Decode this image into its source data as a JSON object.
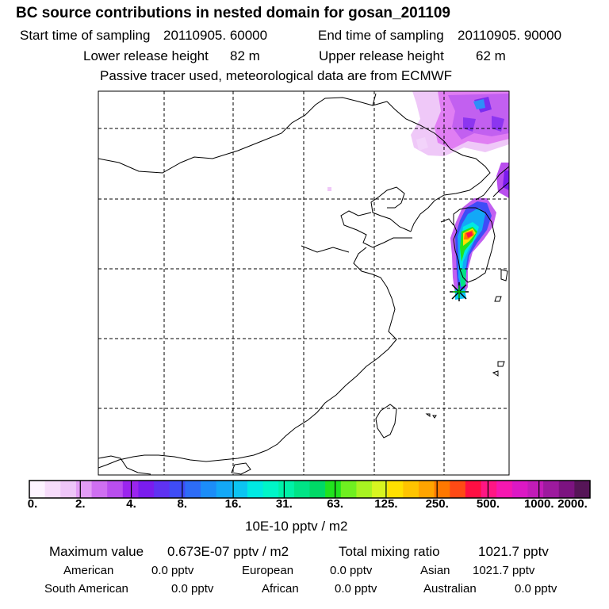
{
  "header": {
    "title": "BC  source contributions in nested domain for gosan_201109",
    "start_label": "Start time of sampling",
    "start_value": "20110905. 60000",
    "end_label": "End time of sampling",
    "end_value": "20110905. 90000",
    "lower_label": "Lower release height",
    "lower_value": "82 m",
    "upper_label": "Upper release height",
    "upper_value": "62 m",
    "note": "Passive tracer used, meteorological data are from ECMWF"
  },
  "chart_data": {
    "type": "heatmap",
    "title": "BC  source contributions in nested domain for gosan_201109",
    "colorbar": {
      "units": "10E-10 pptv / m2",
      "tick_labels": [
        "0.",
        "2.",
        "4.",
        "8.",
        "16.",
        "31.",
        "63.",
        "125.",
        "250.",
        "500.",
        "1000.",
        "2000."
      ],
      "colors": [
        "#fdf3ff",
        "#f7dcfb",
        "#eec5f8",
        "#e39cf5",
        "#cf6ff1",
        "#b94eee",
        "#9b25ee",
        "#7a1cee",
        "#5f32f2",
        "#3f4cf7",
        "#2d6cf7",
        "#1c8df8",
        "#13a8f7",
        "#0cc4f1",
        "#00e9e3",
        "#00f6c8",
        "#00f1a8",
        "#00e486",
        "#00d966",
        "#21e21e",
        "#6ff020",
        "#a8f321",
        "#d8f520",
        "#ffe000",
        "#ffc400",
        "#ffa400",
        "#ff7800",
        "#ff4a15",
        "#ff0f43",
        "#ff1684",
        "#f517b0",
        "#dc18c4",
        "#c21cb8",
        "#9d1a9e",
        "#7c1380",
        "#561557"
      ]
    },
    "receptor": "gosan",
    "grid": "dashed, 6 x 5 cells",
    "colorscale_classes": 36
  },
  "footer": {
    "max_label": "Maximum value",
    "max_value": "0.673E-07 pptv / m2",
    "total_label": "Total mixing ratio",
    "total_value": "1021.7 pptv",
    "regions": [
      {
        "name": "American",
        "value": "0.0 pptv"
      },
      {
        "name": "European",
        "value": "0.0 pptv"
      },
      {
        "name": "Asian",
        "value": "1021.7 pptv"
      },
      {
        "name": "South American",
        "value": "0.0 pptv"
      },
      {
        "name": "African",
        "value": "0.0 pptv"
      },
      {
        "name": "Australian",
        "value": "0.0 pptv"
      }
    ]
  }
}
